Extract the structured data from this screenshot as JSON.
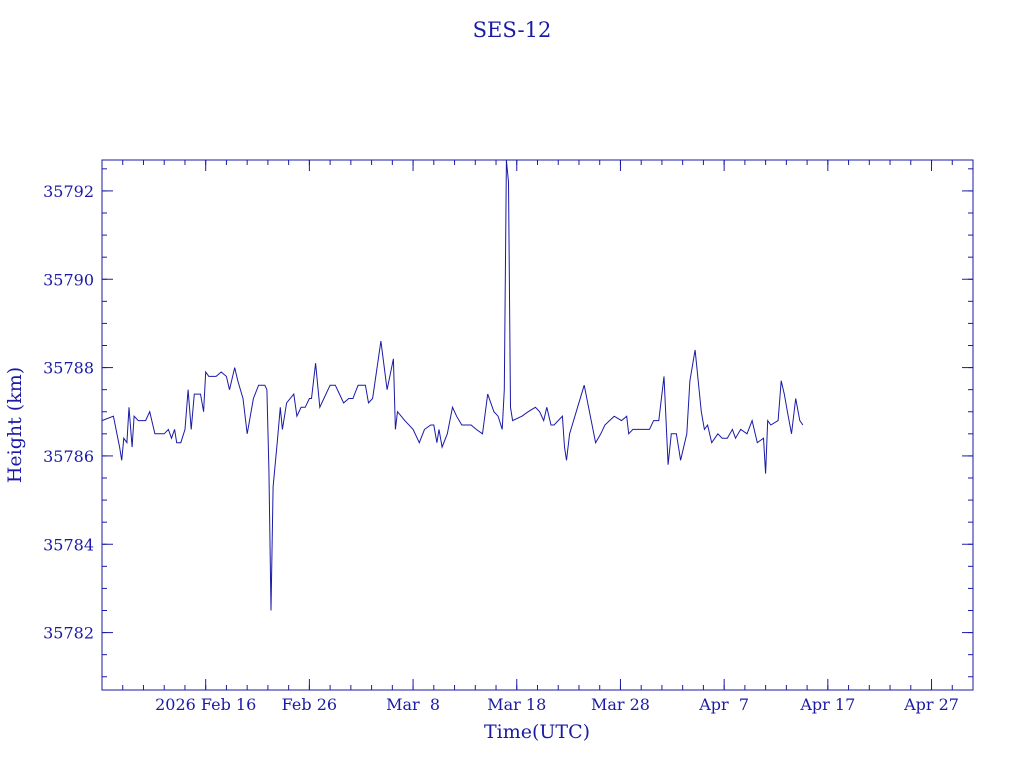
{
  "chart_data": {
    "type": "line",
    "title": "SES-12",
    "xlabel": "Time(UTC)",
    "ylabel": "Height (km)",
    "line_color": "#1a1aa6",
    "axis_color": "#1a1aa6",
    "x_units": "day of year 2026",
    "xlim": [
      37,
      121
    ],
    "ylim": [
      35780.7,
      35792.7
    ],
    "grid": false,
    "x_ticks": [
      {
        "x": 47,
        "label": "2026 Feb 16"
      },
      {
        "x": 57,
        "label": "Feb 26"
      },
      {
        "x": 67,
        "label": "Mar  8"
      },
      {
        "x": 77,
        "label": "Mar 18"
      },
      {
        "x": 87,
        "label": "Mar 28"
      },
      {
        "x": 97,
        "label": "Apr  7"
      },
      {
        "x": 107,
        "label": "Apr 17"
      },
      {
        "x": 117,
        "label": "Apr 27"
      }
    ],
    "x_minor_step": 2,
    "y_ticks": [
      {
        "y": 35782,
        "label": "35782"
      },
      {
        "y": 35784,
        "label": "35784"
      },
      {
        "y": 35786,
        "label": "35786"
      },
      {
        "y": 35788,
        "label": "35788"
      },
      {
        "y": 35790,
        "label": "35790"
      },
      {
        "y": 35792,
        "label": "35792"
      }
    ],
    "y_minor_step": 0.5,
    "series": [
      {
        "name": "",
        "points": [
          [
            37.0,
            35786.8
          ],
          [
            38.1,
            35786.9
          ],
          [
            38.7,
            35786.2
          ],
          [
            38.9,
            35785.9
          ],
          [
            39.1,
            35786.4
          ],
          [
            39.4,
            35786.3
          ],
          [
            39.6,
            35787.1
          ],
          [
            39.9,
            35786.2
          ],
          [
            40.1,
            35786.9
          ],
          [
            40.5,
            35786.8
          ],
          [
            41.2,
            35786.8
          ],
          [
            41.6,
            35787.0
          ],
          [
            41.8,
            35786.8
          ],
          [
            42.1,
            35786.5
          ],
          [
            43.0,
            35786.5
          ],
          [
            43.4,
            35786.6
          ],
          [
            43.7,
            35786.4
          ],
          [
            44.0,
            35786.6
          ],
          [
            44.2,
            35786.3
          ],
          [
            44.6,
            35786.3
          ],
          [
            45.0,
            35786.6
          ],
          [
            45.3,
            35787.5
          ],
          [
            45.6,
            35786.6
          ],
          [
            45.9,
            35787.4
          ],
          [
            46.5,
            35787.4
          ],
          [
            46.8,
            35787.0
          ],
          [
            47.0,
            35787.9
          ],
          [
            47.3,
            35787.8
          ],
          [
            48.0,
            35787.8
          ],
          [
            48.5,
            35787.9
          ],
          [
            49.0,
            35787.8
          ],
          [
            49.3,
            35787.5
          ],
          [
            49.8,
            35788.0
          ],
          [
            50.1,
            35787.7
          ],
          [
            50.6,
            35787.3
          ],
          [
            51.0,
            35786.5
          ],
          [
            51.6,
            35787.3
          ],
          [
            52.1,
            35787.6
          ],
          [
            52.7,
            35787.6
          ],
          [
            52.9,
            35787.5
          ],
          [
            53.1,
            35785.7
          ],
          [
            53.3,
            35782.5
          ],
          [
            53.5,
            35785.3
          ],
          [
            53.9,
            35786.3
          ],
          [
            54.2,
            35787.1
          ],
          [
            54.4,
            35786.6
          ],
          [
            54.8,
            35787.2
          ],
          [
            55.5,
            35787.4
          ],
          [
            55.8,
            35786.9
          ],
          [
            56.2,
            35787.1
          ],
          [
            56.6,
            35787.1
          ],
          [
            57.0,
            35787.3
          ],
          [
            57.2,
            35787.3
          ],
          [
            57.6,
            35788.1
          ],
          [
            58.0,
            35787.1
          ],
          [
            58.4,
            35787.3
          ],
          [
            59.0,
            35787.6
          ],
          [
            59.5,
            35787.6
          ],
          [
            59.9,
            35787.4
          ],
          [
            60.3,
            35787.2
          ],
          [
            60.8,
            35787.3
          ],
          [
            61.2,
            35787.3
          ],
          [
            61.7,
            35787.6
          ],
          [
            62.4,
            35787.6
          ],
          [
            62.7,
            35787.2
          ],
          [
            63.1,
            35787.3
          ],
          [
            63.9,
            35788.6
          ],
          [
            64.5,
            35787.5
          ],
          [
            65.1,
            35788.2
          ],
          [
            65.3,
            35786.6
          ],
          [
            65.5,
            35787.0
          ],
          [
            66.2,
            35786.8
          ],
          [
            67.0,
            35786.6
          ],
          [
            67.6,
            35786.3
          ],
          [
            68.1,
            35786.6
          ],
          [
            68.7,
            35786.7
          ],
          [
            69.0,
            35786.7
          ],
          [
            69.3,
            35786.3
          ],
          [
            69.5,
            35786.6
          ],
          [
            69.8,
            35786.2
          ],
          [
            70.3,
            35786.5
          ],
          [
            70.8,
            35787.1
          ],
          [
            71.2,
            35786.9
          ],
          [
            71.7,
            35786.7
          ],
          [
            72.6,
            35786.7
          ],
          [
            73.1,
            35786.6
          ],
          [
            73.7,
            35786.5
          ],
          [
            74.2,
            35787.4
          ],
          [
            74.8,
            35787.0
          ],
          [
            75.2,
            35786.9
          ],
          [
            75.6,
            35786.6
          ],
          [
            75.8,
            35787.5
          ],
          [
            76.0,
            35792.7
          ],
          [
            76.2,
            35792.2
          ],
          [
            76.4,
            35787.1
          ],
          [
            76.6,
            35786.8
          ],
          [
            77.5,
            35786.9
          ],
          [
            78.1,
            35787.0
          ],
          [
            78.8,
            35787.1
          ],
          [
            79.2,
            35787.0
          ],
          [
            79.6,
            35786.8
          ],
          [
            79.9,
            35787.1
          ],
          [
            80.3,
            35786.7
          ],
          [
            80.6,
            35786.7
          ],
          [
            81.0,
            35786.8
          ],
          [
            81.4,
            35786.9
          ],
          [
            81.6,
            35786.2
          ],
          [
            81.8,
            35785.9
          ],
          [
            82.1,
            35786.5
          ],
          [
            83.5,
            35787.6
          ],
          [
            84.6,
            35786.3
          ],
          [
            85.1,
            35786.5
          ],
          [
            85.5,
            35786.7
          ],
          [
            86.4,
            35786.9
          ],
          [
            87.1,
            35786.8
          ],
          [
            87.6,
            35786.9
          ],
          [
            87.8,
            35786.5
          ],
          [
            88.2,
            35786.6
          ],
          [
            88.6,
            35786.6
          ],
          [
            89.8,
            35786.6
          ],
          [
            90.2,
            35786.8
          ],
          [
            90.7,
            35786.8
          ],
          [
            91.2,
            35787.8
          ],
          [
            91.6,
            35785.8
          ],
          [
            91.9,
            35786.5
          ],
          [
            92.4,
            35786.5
          ],
          [
            92.8,
            35785.9
          ],
          [
            93.4,
            35786.5
          ],
          [
            93.7,
            35787.7
          ],
          [
            94.2,
            35788.4
          ],
          [
            94.8,
            35787.0
          ],
          [
            95.1,
            35786.6
          ],
          [
            95.4,
            35786.7
          ],
          [
            95.8,
            35786.3
          ],
          [
            96.4,
            35786.5
          ],
          [
            96.8,
            35786.4
          ],
          [
            97.3,
            35786.4
          ],
          [
            97.8,
            35786.6
          ],
          [
            98.1,
            35786.4
          ],
          [
            98.6,
            35786.6
          ],
          [
            99.2,
            35786.5
          ],
          [
            99.7,
            35786.8
          ],
          [
            100.2,
            35786.3
          ],
          [
            100.8,
            35786.4
          ],
          [
            101.0,
            35785.6
          ],
          [
            101.2,
            35786.8
          ],
          [
            101.5,
            35786.7
          ],
          [
            102.2,
            35786.8
          ],
          [
            102.5,
            35787.7
          ],
          [
            102.8,
            35787.4
          ],
          [
            103.1,
            35787.0
          ],
          [
            103.5,
            35786.5
          ],
          [
            103.9,
            35787.3
          ],
          [
            104.3,
            35786.8
          ],
          [
            104.6,
            35786.7
          ]
        ]
      }
    ]
  }
}
